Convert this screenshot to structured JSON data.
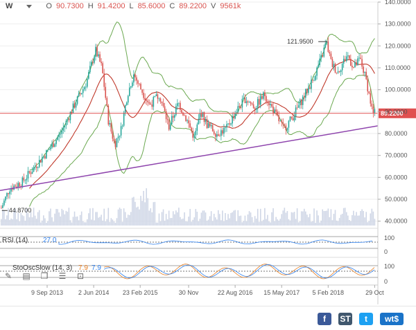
{
  "toolbar": {
    "interval": "W",
    "open_key": "O",
    "open_val": "90.7300",
    "high_key": "H",
    "high_val": "91.4200",
    "low_key": "L",
    "low_val": "85.6000",
    "close_key": "C",
    "close_val": "89.2200",
    "volume_key": "V",
    "volume_val": "9561k"
  },
  "colors": {
    "up": "#26a69a",
    "down": "#d9534f",
    "bollinger": "#6aa84f",
    "ma": "#c0392b",
    "trendline": "#8e44ad",
    "price_line": "#e05050",
    "volume": "#cfd6e6",
    "grid": "#eeeeee"
  },
  "chart_data": [
    {
      "type": "candlestick",
      "title": "",
      "instrument_price": 89.22,
      "price_label": "89.2200",
      "ylim": [
        38,
        140
      ],
      "yticks": [
        40,
        50,
        60,
        70,
        80,
        90,
        100,
        110,
        120,
        130,
        140
      ],
      "ytick_labels": [
        "40.0000",
        "50.0000",
        "60.0000",
        "70.0000",
        "80.0000",
        "90.0000",
        "100.0000",
        "110.0000",
        "120.0000",
        "130.0000",
        "140.0000"
      ],
      "xticks": [
        {
          "label": "9 Sep 2013",
          "x": 2013.69
        },
        {
          "label": "2 Jun 2014",
          "x": 2014.42
        },
        {
          "label": "23 Feb 2015",
          "x": 2015.15
        },
        {
          "label": "30 Nov",
          "x": 2015.91
        },
        {
          "label": "22 Aug 2016",
          "x": 2016.64
        },
        {
          "label": "15 May 2017",
          "x": 2017.37
        },
        {
          "label": "5 Feb 2018",
          "x": 2018.1
        },
        {
          "label": "29 Oct",
          "x": 2018.83
        }
      ],
      "xlim": [
        2012.95,
        2018.88
      ],
      "annotations": [
        {
          "text": "121.9500",
          "x": 2018.0,
          "y": 121.95
        },
        {
          "text": "44.8700",
          "x": 2012.98,
          "y": 44.87
        }
      ],
      "price_path": [
        [
          2012.97,
          46
        ],
        [
          2013.1,
          55
        ],
        [
          2013.3,
          58
        ],
        [
          2013.5,
          65
        ],
        [
          2013.7,
          72
        ],
        [
          2013.9,
          80
        ],
        [
          2014.1,
          92
        ],
        [
          2014.3,
          103
        ],
        [
          2014.45,
          118
        ],
        [
          2014.55,
          110
        ],
        [
          2014.65,
          86
        ],
        [
          2014.75,
          75
        ],
        [
          2014.85,
          82
        ],
        [
          2014.95,
          98
        ],
        [
          2015.05,
          107
        ],
        [
          2015.15,
          101
        ],
        [
          2015.3,
          93
        ],
        [
          2015.45,
          98
        ],
        [
          2015.6,
          83
        ],
        [
          2015.75,
          94
        ],
        [
          2015.9,
          85
        ],
        [
          2016.0,
          78
        ],
        [
          2016.1,
          90
        ],
        [
          2016.2,
          84
        ],
        [
          2016.35,
          80
        ],
        [
          2016.5,
          82
        ],
        [
          2016.65,
          90
        ],
        [
          2016.8,
          96
        ],
        [
          2016.95,
          92
        ],
        [
          2017.1,
          98
        ],
        [
          2017.25,
          90
        ],
        [
          2017.4,
          82
        ],
        [
          2017.55,
          88
        ],
        [
          2017.7,
          96
        ],
        [
          2017.85,
          104
        ],
        [
          2018.0,
          115
        ],
        [
          2018.07,
          121.95
        ],
        [
          2018.15,
          112
        ],
        [
          2018.25,
          108
        ],
        [
          2018.4,
          116
        ],
        [
          2018.5,
          110
        ],
        [
          2018.6,
          114
        ],
        [
          2018.7,
          104
        ],
        [
          2018.8,
          89.22
        ]
      ],
      "trendline": [
        [
          2012.95,
          54
        ],
        [
          2018.88,
          83.5
        ]
      ],
      "rsi": {
        "label": "RSI (14)",
        "value": "27.0",
        "ylim": [
          0,
          100
        ],
        "ytick_labels": [
          "100",
          "0"
        ]
      },
      "stochastic": {
        "label": "StoOscSlow (14, 3)",
        "k": "7.9",
        "d": "7.9",
        "ylim": [
          0,
          100
        ],
        "ytick_labels": [
          "100",
          "0"
        ]
      }
    }
  ],
  "footer": {
    "facebook": "f",
    "stocktwits": "ST",
    "twitter": "t",
    "brand": "wt$"
  }
}
